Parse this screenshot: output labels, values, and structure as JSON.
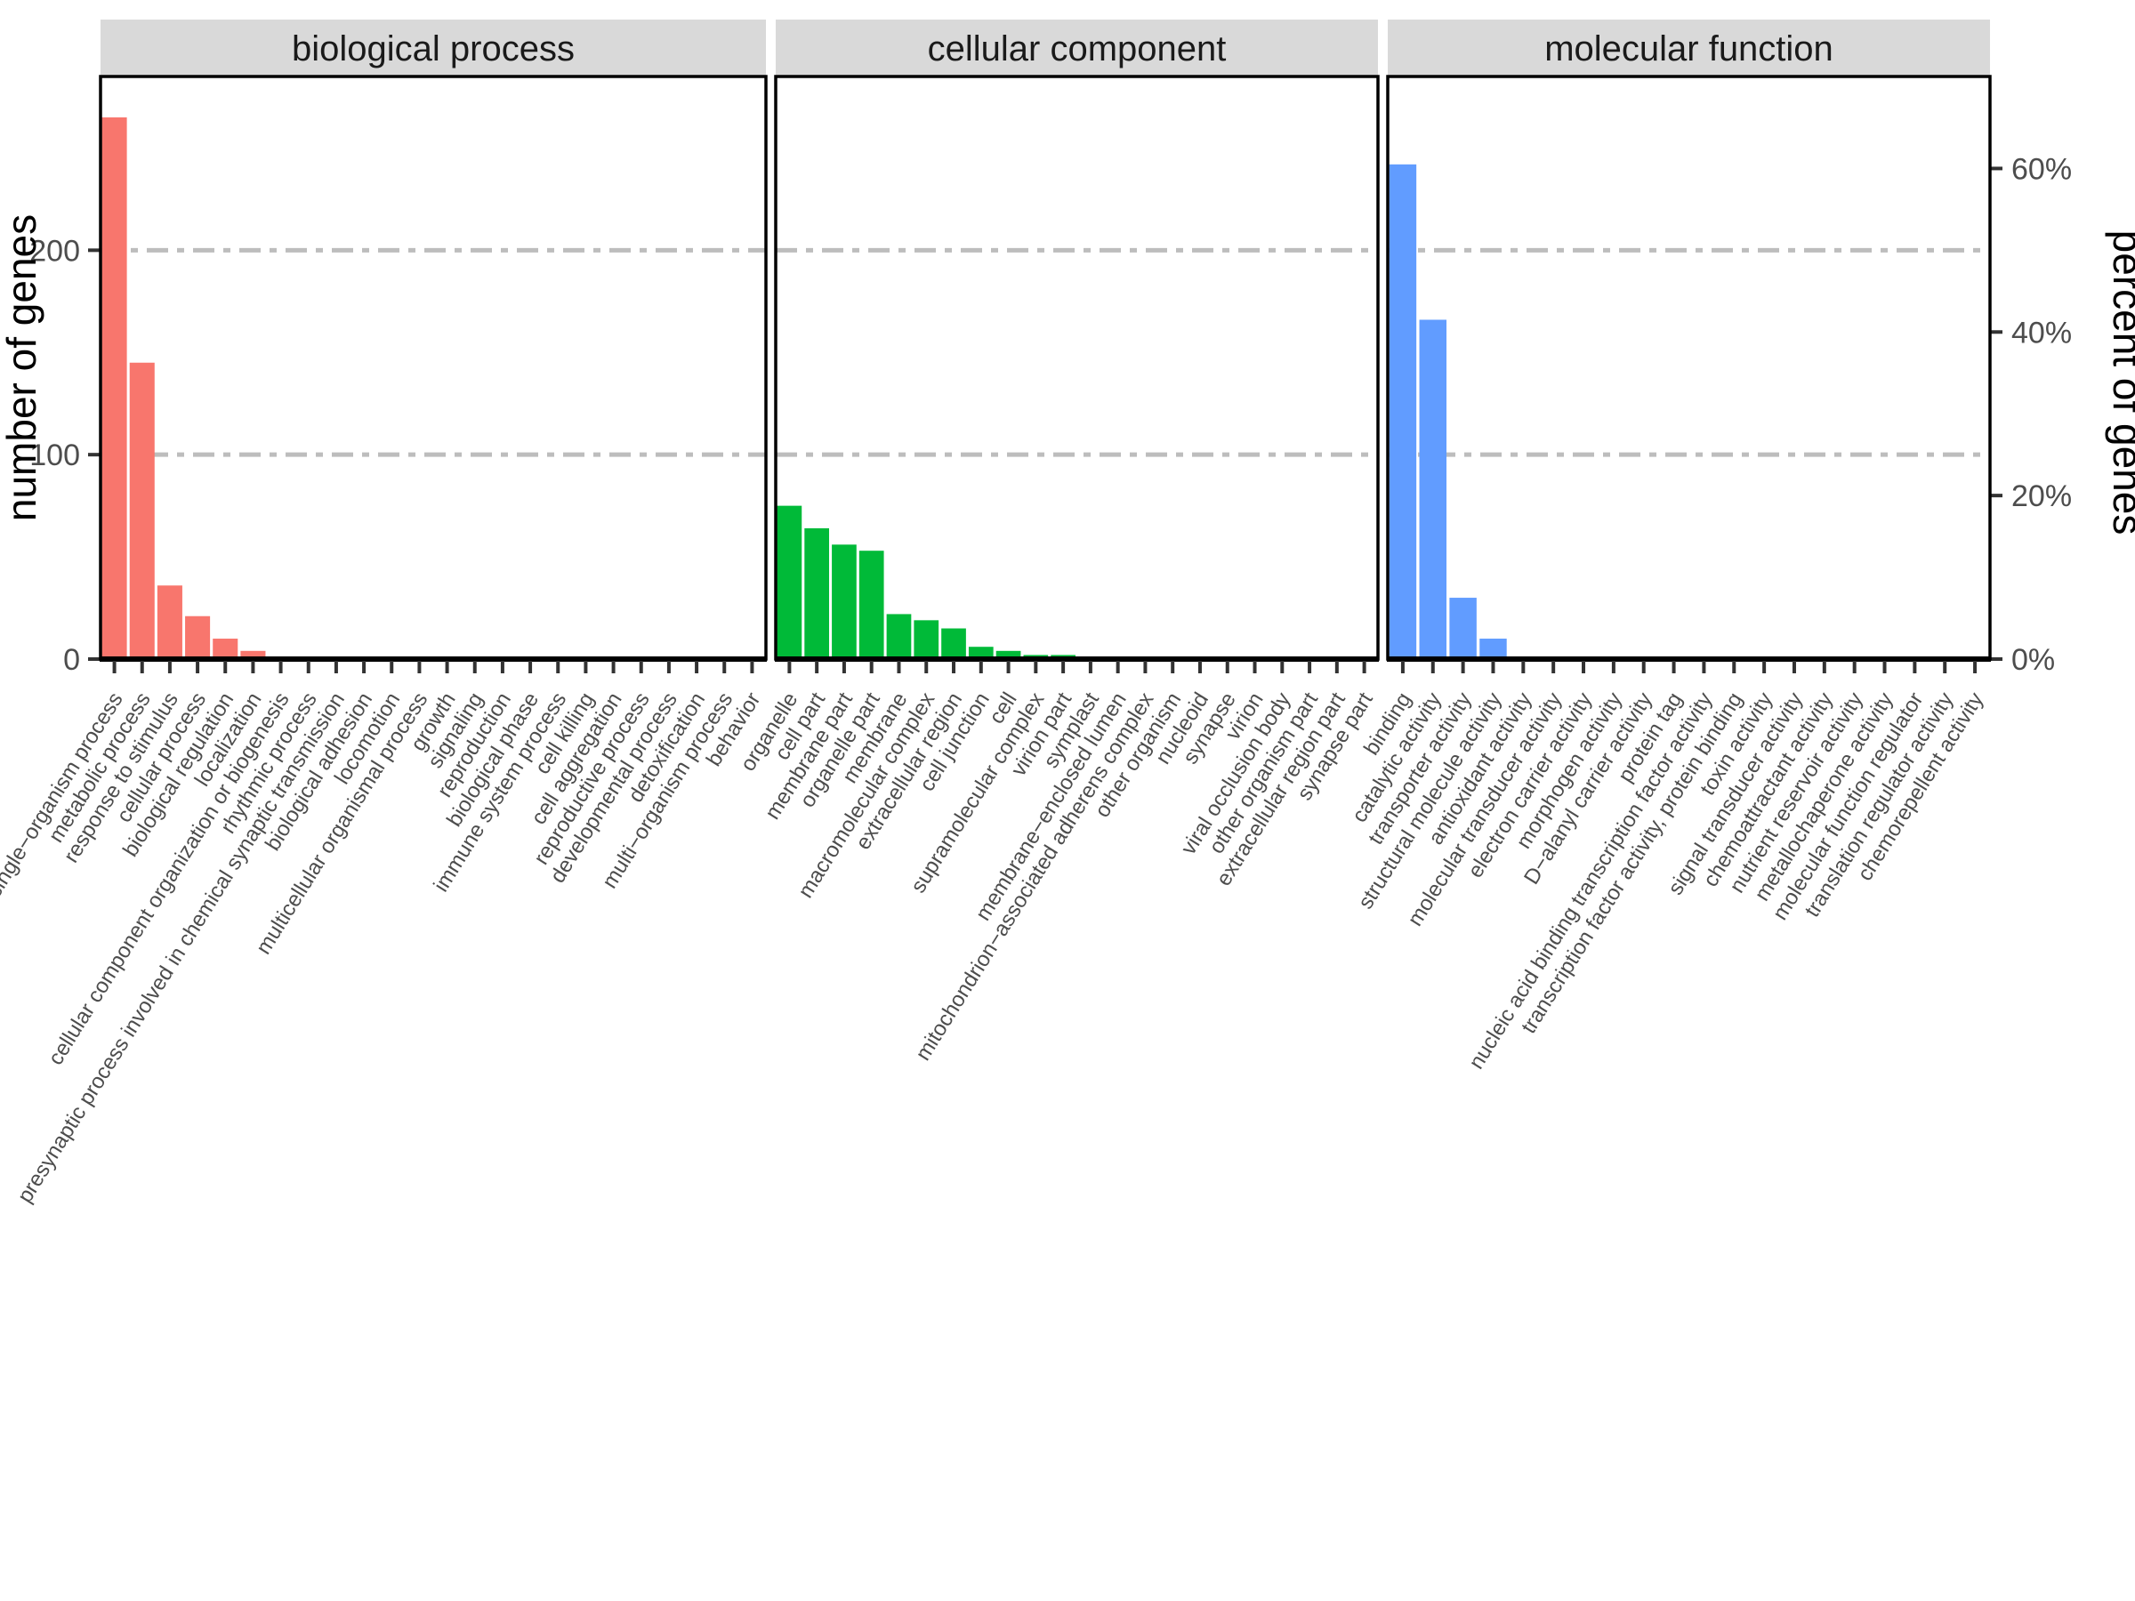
{
  "figure": {
    "background": "#ffffff",
    "strip_bg": "#d9d9d9",
    "panel_border": "#000000",
    "gridline_color": "#bdbdbd",
    "axis_text_color": "#4d4d4d",
    "strip_text_color": "#1a1a1a"
  },
  "chart_data": {
    "type": "bar",
    "title": "",
    "legend_position": "none",
    "grid": "horizontal dashed gridlines at 100 and 200 genes only",
    "gridlines_at": [
      100,
      200
    ],
    "y_left": {
      "label": "number of genes",
      "tick_labels": [
        "0",
        "100",
        "200"
      ],
      "tick_values": [
        0,
        100,
        200
      ],
      "range": [
        0,
        285
      ]
    },
    "y_right": {
      "label": "percent of genes",
      "tick_labels": [
        "0%",
        "20%",
        "40%",
        "60%"
      ],
      "tick_percent_values": [
        0,
        20,
        40,
        60
      ],
      "genes_per_percent": 4
    },
    "facets": [
      {
        "title": "biological process",
        "color": "#F8766D",
        "categories": [
          "single−organism process",
          "metabolic process",
          "response to stimulus",
          "cellular process",
          "biological regulation",
          "localization",
          "cellular component organization or biogenesis",
          "rhythmic process",
          "presynaptic process involved in chemical synaptic transmission",
          "biological adhesion",
          "locomotion",
          "multicellular organismal process",
          "growth",
          "signaling",
          "reproduction",
          "biological phase",
          "immune system process",
          "cell killing",
          "cell aggregation",
          "reproductive process",
          "developmental process",
          "detoxification",
          "multi−organism process",
          "behavior"
        ],
        "values": [
          265,
          145,
          36,
          21,
          10,
          4,
          0,
          0,
          0,
          0,
          0,
          0,
          0,
          0,
          0,
          0,
          0,
          0,
          0,
          0,
          0,
          0,
          0,
          0
        ]
      },
      {
        "title": "cellular component",
        "color": "#00BA38",
        "categories": [
          "organelle",
          "cell part",
          "membrane part",
          "organelle part",
          "membrane",
          "macromolecular complex",
          "extracellular region",
          "cell junction",
          "cell",
          "supramolecular complex",
          "virion part",
          "symplast",
          "membrane−enclosed lumen",
          "mitochondrion−associated adherens complex",
          "other organism",
          "nucleoid",
          "synapse",
          "virion",
          "viral occlusion body",
          "other organism part",
          "extracellular region part",
          "synapse part"
        ],
        "values": [
          75,
          64,
          56,
          53,
          22,
          19,
          15,
          6,
          4,
          2,
          2,
          0,
          0,
          0,
          0,
          0,
          0,
          0,
          0,
          0,
          0,
          0
        ]
      },
      {
        "title": "molecular function",
        "color": "#619CFF",
        "categories": [
          "binding",
          "catalytic activity",
          "transporter activity",
          "structural molecule activity",
          "antioxidant activity",
          "molecular transducer activity",
          "electron carrier activity",
          "morphogen activity",
          "D−alanyl carrier activity",
          "protein tag",
          "nucleic acid binding transcription factor activity",
          "transcription factor activity, protein binding",
          "toxin activity",
          "signal transducer activity",
          "chemoattractant activity",
          "nutrient reservoir activity",
          "metallochaperone activity",
          "molecular function regulator",
          "translation regulator activity",
          "chemorepellent activity"
        ],
        "values": [
          242,
          166,
          30,
          10,
          0,
          0,
          0,
          0,
          0,
          0,
          0,
          0,
          0,
          0,
          0,
          0,
          0,
          0,
          0,
          0
        ]
      }
    ]
  }
}
